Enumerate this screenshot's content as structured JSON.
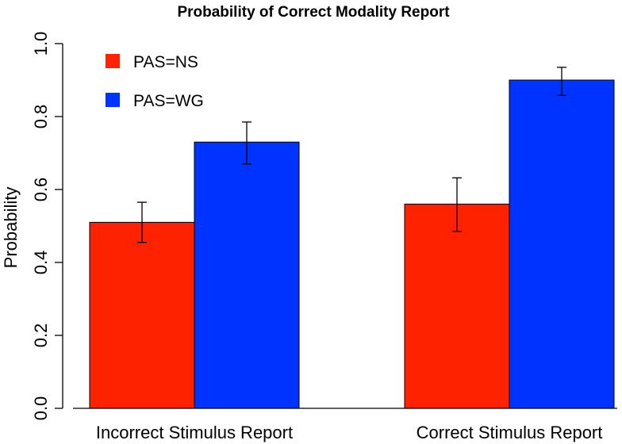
{
  "chart_data": {
    "type": "bar",
    "title": "Probability of Correct Modality Report",
    "xlabel": "",
    "ylabel": "Probability",
    "ylim": [
      0,
      1.0
    ],
    "yticks": [
      "0.0",
      "0.2",
      "0.4",
      "0.6",
      "0.8",
      "1.0"
    ],
    "categories": [
      "Incorrect Stimulus Report",
      "Correct Stimulus Report"
    ],
    "series": [
      {
        "name": "PAS=NS",
        "color": "#ff2200",
        "values": [
          0.51,
          0.56
        ],
        "error_low": [
          0.455,
          0.485
        ],
        "error_high": [
          0.565,
          0.632
        ]
      },
      {
        "name": "PAS=WG",
        "color": "#0033ff",
        "values": [
          0.73,
          0.9
        ],
        "error_low": [
          0.67,
          0.858
        ],
        "error_high": [
          0.785,
          0.935
        ]
      }
    ],
    "legend_position": "top-left",
    "grid": false
  }
}
